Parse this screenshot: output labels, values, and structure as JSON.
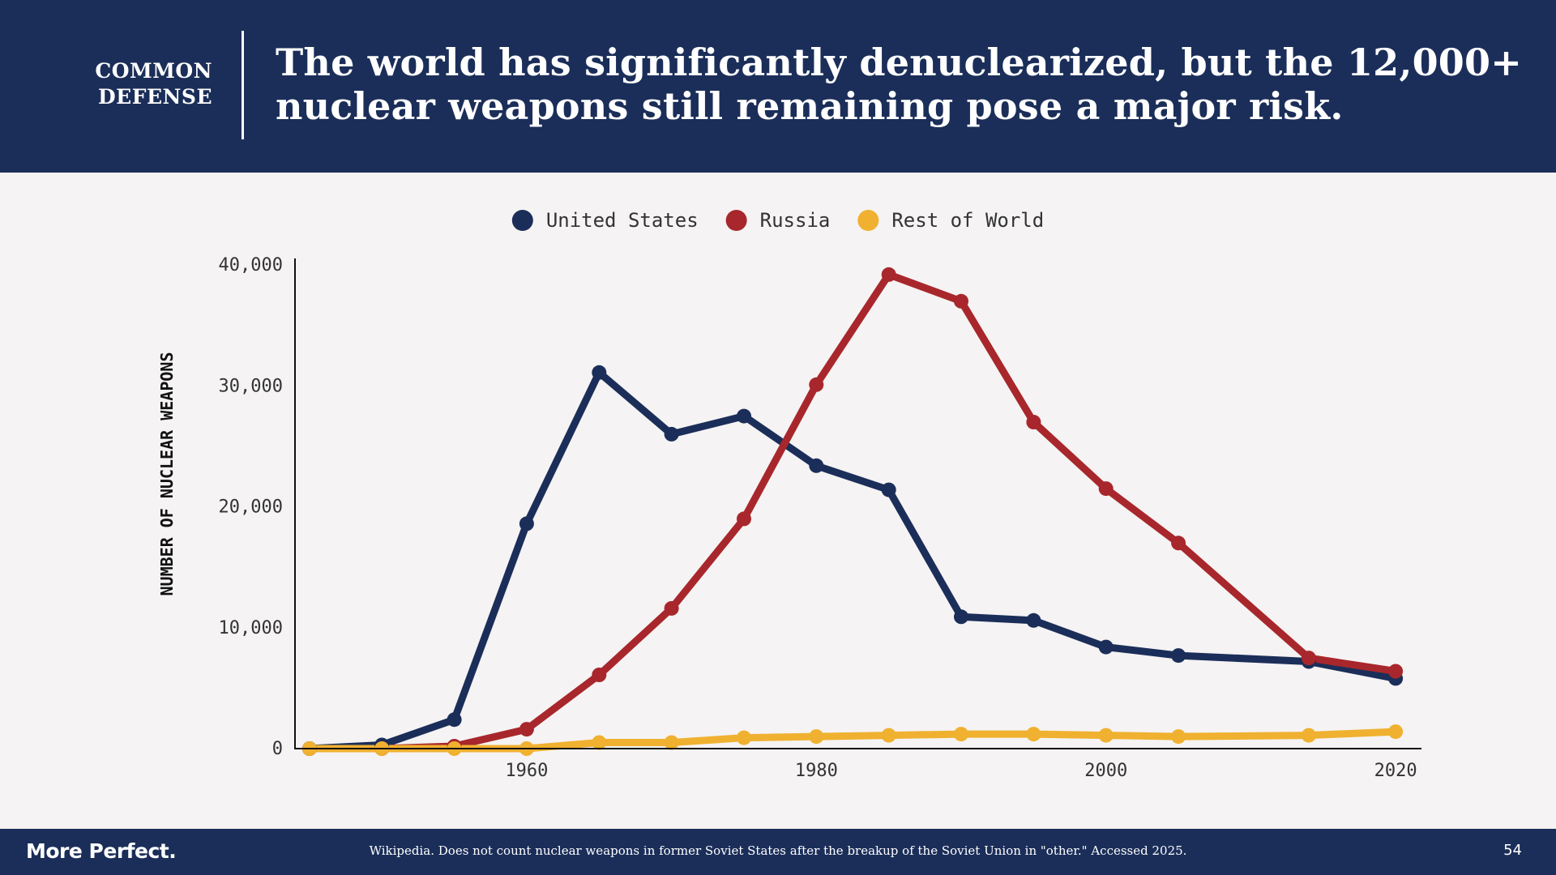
{
  "header": {
    "section_label_line1": "COMMON",
    "section_label_line2": "DEFENSE",
    "headline": "The world has significantly denuclearized, but the 12,000+ nuclear weapons still remaining pose a major risk."
  },
  "footer": {
    "brand": "More Perfect.",
    "source": "Wikipedia. Does not count nuclear weapons in former Soviet States after the breakup of the Soviet Union in \"other.\" Accessed 2025.",
    "page_number": "54"
  },
  "colors": {
    "navy": "#1b2e59",
    "red": "#a8272c",
    "gold": "#f0b130",
    "background": "#f5f3f3"
  },
  "chart_data": {
    "type": "line",
    "title": "",
    "xlabel": "",
    "ylabel": "NUMBER OF NUCLEAR WEAPONS",
    "xlim": [
      1944,
      2021
    ],
    "ylim": [
      0,
      40000
    ],
    "x_ticks": [
      1960,
      1980,
      2000,
      2020
    ],
    "x_tick_labels": [
      "1960",
      "1980",
      "2000",
      "2020"
    ],
    "y_ticks": [
      0,
      10000,
      20000,
      30000,
      40000
    ],
    "y_tick_labels": [
      "0",
      "10,000",
      "20,000",
      "30,000",
      "40,000"
    ],
    "legend_position": "top-center",
    "grid": false,
    "series": [
      {
        "name": "United States",
        "color": "#1b2e59",
        "points": [
          [
            1945,
            0
          ],
          [
            1950,
            300
          ],
          [
            1955,
            2400
          ],
          [
            1960,
            18600
          ],
          [
            1965,
            31100
          ],
          [
            1970,
            26000
          ],
          [
            1975,
            27500
          ],
          [
            1980,
            23400
          ],
          [
            1985,
            21400
          ],
          [
            1990,
            10900
          ],
          [
            1995,
            10600
          ],
          [
            2000,
            8400
          ],
          [
            2005,
            7700
          ],
          [
            2014,
            7200
          ],
          [
            2020,
            5800
          ]
        ]
      },
      {
        "name": "Russia",
        "color": "#a8272c",
        "points": [
          [
            1945,
            0
          ],
          [
            1950,
            0
          ],
          [
            1955,
            200
          ],
          [
            1960,
            1600
          ],
          [
            1965,
            6100
          ],
          [
            1970,
            11600
          ],
          [
            1975,
            19000
          ],
          [
            1980,
            30100
          ],
          [
            1985,
            39200
          ],
          [
            1990,
            37000
          ],
          [
            1995,
            27000
          ],
          [
            2000,
            21500
          ],
          [
            2005,
            17000
          ],
          [
            2014,
            7500
          ],
          [
            2020,
            6400
          ]
        ]
      },
      {
        "name": "Rest of World",
        "color": "#f0b130",
        "points": [
          [
            1945,
            0
          ],
          [
            1950,
            0
          ],
          [
            1955,
            0
          ],
          [
            1960,
            0
          ],
          [
            1965,
            500
          ],
          [
            1970,
            500
          ],
          [
            1975,
            900
          ],
          [
            1980,
            1000
          ],
          [
            1985,
            1100
          ],
          [
            1990,
            1200
          ],
          [
            1995,
            1200
          ],
          [
            2000,
            1100
          ],
          [
            2005,
            1000
          ],
          [
            2014,
            1100
          ],
          [
            2020,
            1400
          ]
        ]
      }
    ]
  }
}
